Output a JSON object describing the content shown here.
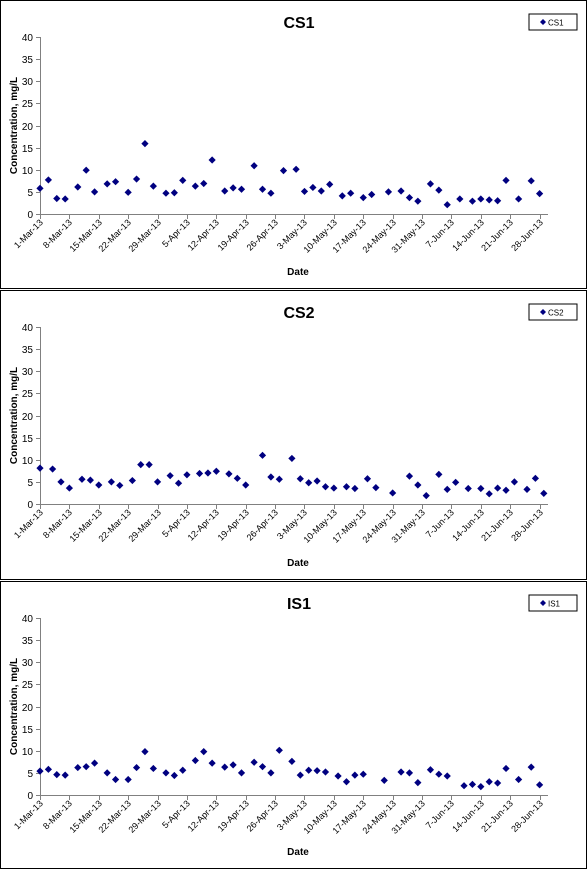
{
  "chart_data": [
    {
      "type": "scatter",
      "title": "CS1",
      "xlabel": "Date",
      "ylabel": "Concentration, mg/L",
      "ylim": [
        0,
        40
      ],
      "yticks": [
        "0",
        "5",
        "10",
        "15",
        "20",
        "25",
        "30",
        "35",
        "40"
      ],
      "xticks": [
        "1-Mar-13",
        "8-Mar-13",
        "15-Mar-13",
        "22-Mar-13",
        "29-Mar-13",
        "5-Apr-13",
        "12-Apr-13",
        "19-Apr-13",
        "26-Apr-13",
        "3-May-13",
        "10-May-13",
        "17-May-13",
        "24-May-13",
        "31-May-13",
        "7-Jun-13",
        "14-Jun-13",
        "21-Jun-13",
        "28-Jun-13"
      ],
      "legend": "top-right",
      "grid": false,
      "series": [
        {
          "name": "CS1",
          "color": "#000080",
          "points": [
            [
              "1-Mar-13",
              5.8
            ],
            [
              "3-Mar-13",
              7.7
            ],
            [
              "5-Mar-13",
              3.5
            ],
            [
              "7-Mar-13",
              3.4
            ],
            [
              "10-Mar-13",
              6.1
            ],
            [
              "12-Mar-13",
              9.9
            ],
            [
              "14-Mar-13",
              5.0
            ],
            [
              "17-Mar-13",
              6.8
            ],
            [
              "19-Mar-13",
              7.3
            ],
            [
              "22-Mar-13",
              4.9
            ],
            [
              "24-Mar-13",
              7.9
            ],
            [
              "26-Mar-13",
              15.9
            ],
            [
              "28-Mar-13",
              6.3
            ],
            [
              "31-Mar-13",
              4.7
            ],
            [
              "2-Apr-13",
              4.8
            ],
            [
              "4-Apr-13",
              7.6
            ],
            [
              "7-Apr-13",
              6.3
            ],
            [
              "9-Apr-13",
              6.9
            ],
            [
              "11-Apr-13",
              12.2
            ],
            [
              "14-Apr-13",
              5.2
            ],
            [
              "16-Apr-13",
              5.9
            ],
            [
              "18-Apr-13",
              5.6
            ],
            [
              "21-Apr-13",
              10.9
            ],
            [
              "23-Apr-13",
              5.6
            ],
            [
              "25-Apr-13",
              4.7
            ],
            [
              "28-Apr-13",
              9.8
            ],
            [
              "1-May-13",
              10.1
            ],
            [
              "3-May-13",
              5.1
            ],
            [
              "5-May-13",
              6.0
            ],
            [
              "7-May-13",
              5.2
            ],
            [
              "9-May-13",
              6.7
            ],
            [
              "12-May-13",
              4.1
            ],
            [
              "14-May-13",
              4.7
            ],
            [
              "17-May-13",
              3.7
            ],
            [
              "19-May-13",
              4.4
            ],
            [
              "23-May-13",
              5.0
            ],
            [
              "26-May-13",
              5.2
            ],
            [
              "28-May-13",
              3.7
            ],
            [
              "30-May-13",
              2.9
            ],
            [
              "2-Jun-13",
              6.8
            ],
            [
              "4-Jun-13",
              5.4
            ],
            [
              "6-Jun-13",
              2.1
            ],
            [
              "9-Jun-13",
              3.4
            ],
            [
              "12-Jun-13",
              2.9
            ],
            [
              "14-Jun-13",
              3.4
            ],
            [
              "16-Jun-13",
              3.2
            ],
            [
              "18-Jun-13",
              3.0
            ],
            [
              "20-Jun-13",
              7.6
            ],
            [
              "23-Jun-13",
              3.4
            ],
            [
              "26-Jun-13",
              7.5
            ],
            [
              "28-Jun-13",
              4.6
            ]
          ]
        }
      ]
    },
    {
      "type": "scatter",
      "title": "CS2",
      "xlabel": "Date",
      "ylabel": "Concentration, mg/L",
      "ylim": [
        0,
        40
      ],
      "yticks": [
        "0",
        "5",
        "10",
        "15",
        "20",
        "25",
        "30",
        "35",
        "40"
      ],
      "xticks": [
        "1-Mar-13",
        "8-Mar-13",
        "15-Mar-13",
        "22-Mar-13",
        "29-Mar-13",
        "5-Apr-13",
        "12-Apr-13",
        "19-Apr-13",
        "26-Apr-13",
        "3-May-13",
        "10-May-13",
        "17-May-13",
        "24-May-13",
        "31-May-13",
        "7-Jun-13",
        "14-Jun-13",
        "21-Jun-13",
        "28-Jun-13"
      ],
      "legend": "top-right",
      "grid": false,
      "series": [
        {
          "name": "CS2",
          "color": "#000080",
          "points": [
            [
              "1-Mar-13",
              8.1
            ],
            [
              "4-Mar-13",
              7.9
            ],
            [
              "6-Mar-13",
              5.0
            ],
            [
              "8-Mar-13",
              3.6
            ],
            [
              "11-Mar-13",
              5.6
            ],
            [
              "13-Mar-13",
              5.4
            ],
            [
              "15-Mar-13",
              4.3
            ],
            [
              "18-Mar-13",
              5.0
            ],
            [
              "20-Mar-13",
              4.2
            ],
            [
              "23-Mar-13",
              5.3
            ],
            [
              "25-Mar-13",
              8.9
            ],
            [
              "27-Mar-13",
              8.9
            ],
            [
              "29-Mar-13",
              5.0
            ],
            [
              "1-Apr-13",
              6.4
            ],
            [
              "3-Apr-13",
              4.7
            ],
            [
              "5-Apr-13",
              6.6
            ],
            [
              "8-Apr-13",
              6.9
            ],
            [
              "10-Apr-13",
              7.0
            ],
            [
              "12-Apr-13",
              7.4
            ],
            [
              "15-Apr-13",
              6.8
            ],
            [
              "17-Apr-13",
              5.8
            ],
            [
              "19-Apr-13",
              4.3
            ],
            [
              "23-Apr-13",
              11.0
            ],
            [
              "25-Apr-13",
              6.1
            ],
            [
              "27-Apr-13",
              5.6
            ],
            [
              "30-Apr-13",
              10.3
            ],
            [
              "2-May-13",
              5.7
            ],
            [
              "4-May-13",
              4.8
            ],
            [
              "6-May-13",
              5.2
            ],
            [
              "8-May-13",
              3.9
            ],
            [
              "10-May-13",
              3.6
            ],
            [
              "13-May-13",
              3.9
            ],
            [
              "15-May-13",
              3.5
            ],
            [
              "18-May-13",
              5.7
            ],
            [
              "20-May-13",
              3.7
            ],
            [
              "24-May-13",
              2.5
            ],
            [
              "28-May-13",
              6.3
            ],
            [
              "30-May-13",
              4.3
            ],
            [
              "1-Jun-13",
              1.9
            ],
            [
              "4-Jun-13",
              6.7
            ],
            [
              "6-Jun-13",
              3.3
            ],
            [
              "8-Jun-13",
              4.9
            ],
            [
              "11-Jun-13",
              3.5
            ],
            [
              "14-Jun-13",
              3.5
            ],
            [
              "16-Jun-13",
              2.3
            ],
            [
              "18-Jun-13",
              3.6
            ],
            [
              "20-Jun-13",
              3.1
            ],
            [
              "22-Jun-13",
              5.0
            ],
            [
              "25-Jun-13",
              3.3
            ],
            [
              "27-Jun-13",
              5.8
            ],
            [
              "29-Jun-13",
              2.4
            ]
          ]
        }
      ]
    },
    {
      "type": "scatter",
      "title": "IS1",
      "xlabel": "Date",
      "ylabel": "Concentration, mg/L",
      "ylim": [
        0,
        40
      ],
      "yticks": [
        "0",
        "5",
        "10",
        "15",
        "20",
        "25",
        "30",
        "35",
        "40"
      ],
      "xticks": [
        "1-Mar-13",
        "8-Mar-13",
        "15-Mar-13",
        "22-Mar-13",
        "29-Mar-13",
        "5-Apr-13",
        "12-Apr-13",
        "19-Apr-13",
        "26-Apr-13",
        "3-May-13",
        "10-May-13",
        "17-May-13",
        "24-May-13",
        "31-May-13",
        "7-Jun-13",
        "14-Jun-13",
        "21-Jun-13",
        "28-Jun-13"
      ],
      "legend": "top-right",
      "grid": false,
      "series": [
        {
          "name": "IS1",
          "color": "#000080",
          "points": [
            [
              "1-Mar-13",
              5.4
            ],
            [
              "3-Mar-13",
              5.8
            ],
            [
              "5-Mar-13",
              4.6
            ],
            [
              "7-Mar-13",
              4.5
            ],
            [
              "10-Mar-13",
              6.2
            ],
            [
              "12-Mar-13",
              6.4
            ],
            [
              "14-Mar-13",
              7.2
            ],
            [
              "17-Mar-13",
              5.0
            ],
            [
              "19-Mar-13",
              3.5
            ],
            [
              "22-Mar-13",
              3.5
            ],
            [
              "24-Mar-13",
              6.2
            ],
            [
              "26-Mar-13",
              9.8
            ],
            [
              "28-Mar-13",
              6.0
            ],
            [
              "31-Mar-13",
              5.0
            ],
            [
              "2-Apr-13",
              4.4
            ],
            [
              "4-Apr-13",
              5.6
            ],
            [
              "7-Apr-13",
              7.8
            ],
            [
              "9-Apr-13",
              9.8
            ],
            [
              "11-Apr-13",
              7.2
            ],
            [
              "14-Apr-13",
              6.3
            ],
            [
              "16-Apr-13",
              6.8
            ],
            [
              "18-Apr-13",
              5.0
            ],
            [
              "21-Apr-13",
              7.4
            ],
            [
              "23-Apr-13",
              6.4
            ],
            [
              "25-Apr-13",
              5.0
            ],
            [
              "27-Apr-13",
              10.1
            ],
            [
              "30-Apr-13",
              7.6
            ],
            [
              "2-May-13",
              4.5
            ],
            [
              "4-May-13",
              5.6
            ],
            [
              "6-May-13",
              5.5
            ],
            [
              "8-May-13",
              5.2
            ],
            [
              "11-May-13",
              4.3
            ],
            [
              "13-May-13",
              3.0
            ],
            [
              "15-May-13",
              4.5
            ],
            [
              "17-May-13",
              4.7
            ],
            [
              "22-May-13",
              3.3
            ],
            [
              "26-May-13",
              5.2
            ],
            [
              "28-May-13",
              5.0
            ],
            [
              "30-May-13",
              2.8
            ],
            [
              "2-Jun-13",
              5.7
            ],
            [
              "4-Jun-13",
              4.7
            ],
            [
              "6-Jun-13",
              4.3
            ],
            [
              "10-Jun-13",
              2.1
            ],
            [
              "12-Jun-13",
              2.4
            ],
            [
              "14-Jun-13",
              1.9
            ],
            [
              "16-Jun-13",
              3.0
            ],
            [
              "18-Jun-13",
              2.7
            ],
            [
              "20-Jun-13",
              6.0
            ],
            [
              "23-Jun-13",
              3.5
            ],
            [
              "26-Jun-13",
              6.3
            ],
            [
              "28-Jun-13",
              2.3
            ]
          ]
        }
      ]
    }
  ]
}
